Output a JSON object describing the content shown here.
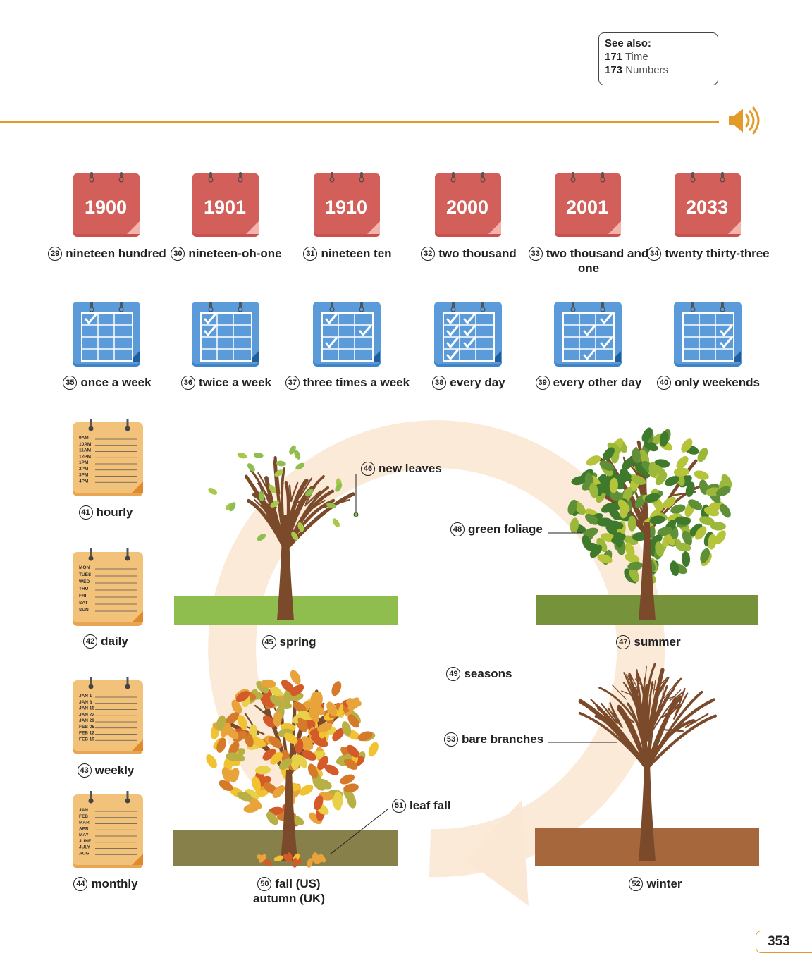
{
  "see_also": {
    "title": "See also:",
    "items": [
      {
        "num": "171",
        "word": "Time"
      },
      {
        "num": "173",
        "word": "Numbers"
      }
    ]
  },
  "colors": {
    "accent": "#e39a27",
    "year_calendar": "#d35f5a",
    "freq_calendar": "#5b9bd9",
    "notepad": "#f2c27a"
  },
  "years": [
    {
      "n": "29",
      "year": "1900",
      "label": "nineteen hundred"
    },
    {
      "n": "30",
      "year": "1901",
      "label": "nineteen-oh-one"
    },
    {
      "n": "31",
      "year": "1910",
      "label": "nineteen ten"
    },
    {
      "n": "32",
      "year": "2000",
      "label": "two thousand"
    },
    {
      "n": "33",
      "year": "2001",
      "label": "two thousand and one"
    },
    {
      "n": "34",
      "year": "2033",
      "label": "twenty thirty-three"
    }
  ],
  "frequency": [
    {
      "n": "35",
      "label": "once a week"
    },
    {
      "n": "36",
      "label": "twice a week"
    },
    {
      "n": "37",
      "label": "three times a week"
    },
    {
      "n": "38",
      "label": "every day"
    },
    {
      "n": "39",
      "label": "every other day"
    },
    {
      "n": "40",
      "label": "only weekends"
    }
  ],
  "schedules": [
    {
      "n": "41",
      "label": "hourly",
      "entries": [
        "9AM",
        "10AM",
        "11AM",
        "12PM",
        "1PM",
        "2PM",
        "3PM",
        "4PM"
      ]
    },
    {
      "n": "42",
      "label": "daily",
      "entries": [
        "MON",
        "TUES",
        "WED",
        "THU",
        "FRI",
        "SAT",
        "SUN"
      ]
    },
    {
      "n": "43",
      "label": "weekly",
      "entries": [
        "JAN 1",
        "JAN 8",
        "JAN 15",
        "JAN 22",
        "JAN 29",
        "FEB 05",
        "FEB 12",
        "FEB 19"
      ]
    },
    {
      "n": "44",
      "label": "monthly",
      "entries": [
        "JAN",
        "FEB",
        "MAR",
        "APR",
        "MAY",
        "JUNE",
        "JULY",
        "AUG"
      ]
    }
  ],
  "seasons": {
    "spring": {
      "n": "45",
      "label": "spring"
    },
    "new_leaves": {
      "n": "46",
      "label": "new leaves"
    },
    "summer": {
      "n": "47",
      "label": "summer"
    },
    "green_foliage": {
      "n": "48",
      "label": "green foliage"
    },
    "seasons": {
      "n": "49",
      "label": "seasons"
    },
    "fall": {
      "n": "50",
      "label": "fall (US)",
      "label2": "autumn (UK)"
    },
    "leaf_fall": {
      "n": "51",
      "label": "leaf fall"
    },
    "winter": {
      "n": "52",
      "label": "winter"
    },
    "bare_branches": {
      "n": "53",
      "label": "bare branches"
    }
  },
  "page_number": "353"
}
